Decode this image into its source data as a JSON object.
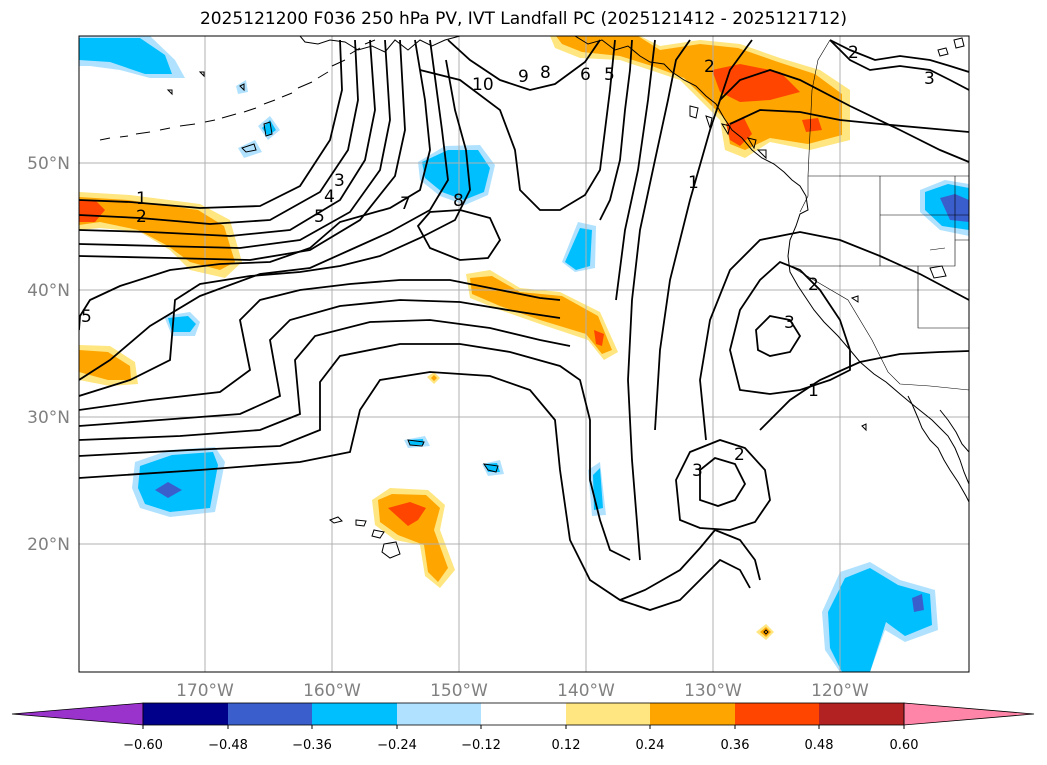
{
  "title": "2025121200 F036 250 hPa PV, IVT Landfall PC (2025121412 - 2025121712)",
  "latitude_labels": [
    "50°N",
    "40°N",
    "30°N",
    "20°N"
  ],
  "longitude_labels": [
    "170°W",
    "160°W",
    "150°W",
    "140°W",
    "130°W",
    "120°W"
  ],
  "colorbar": {
    "tick_labels": [
      "−0.60",
      "−0.48",
      "−0.36",
      "−0.24",
      "−0.12",
      "0.12",
      "0.24",
      "0.36",
      "0.48",
      "0.60"
    ],
    "colors": [
      "#9933cc",
      "#00008b",
      "#3a5fcd",
      "#00bfff",
      "#b0e2ff",
      "#ffffff",
      "#ffe680",
      "#ffa500",
      "#ff4500",
      "#b22222",
      "#ff85a8"
    ]
  },
  "contour_labels": [
    "1",
    "2",
    "3",
    "4",
    "5",
    "7",
    "8",
    "10",
    "9",
    "8",
    "6",
    "5",
    "2",
    "1",
    "2",
    "2",
    "3",
    "3",
    "2",
    "3",
    "1",
    "5"
  ],
  "shading_colors": {
    "light_blue": "#b0e2ff",
    "blue": "#00bfff",
    "dark_blue": "#3a5fcd",
    "yellow": "#ffe680",
    "orange": "#ffa500",
    "red_orange": "#ff4500"
  }
}
